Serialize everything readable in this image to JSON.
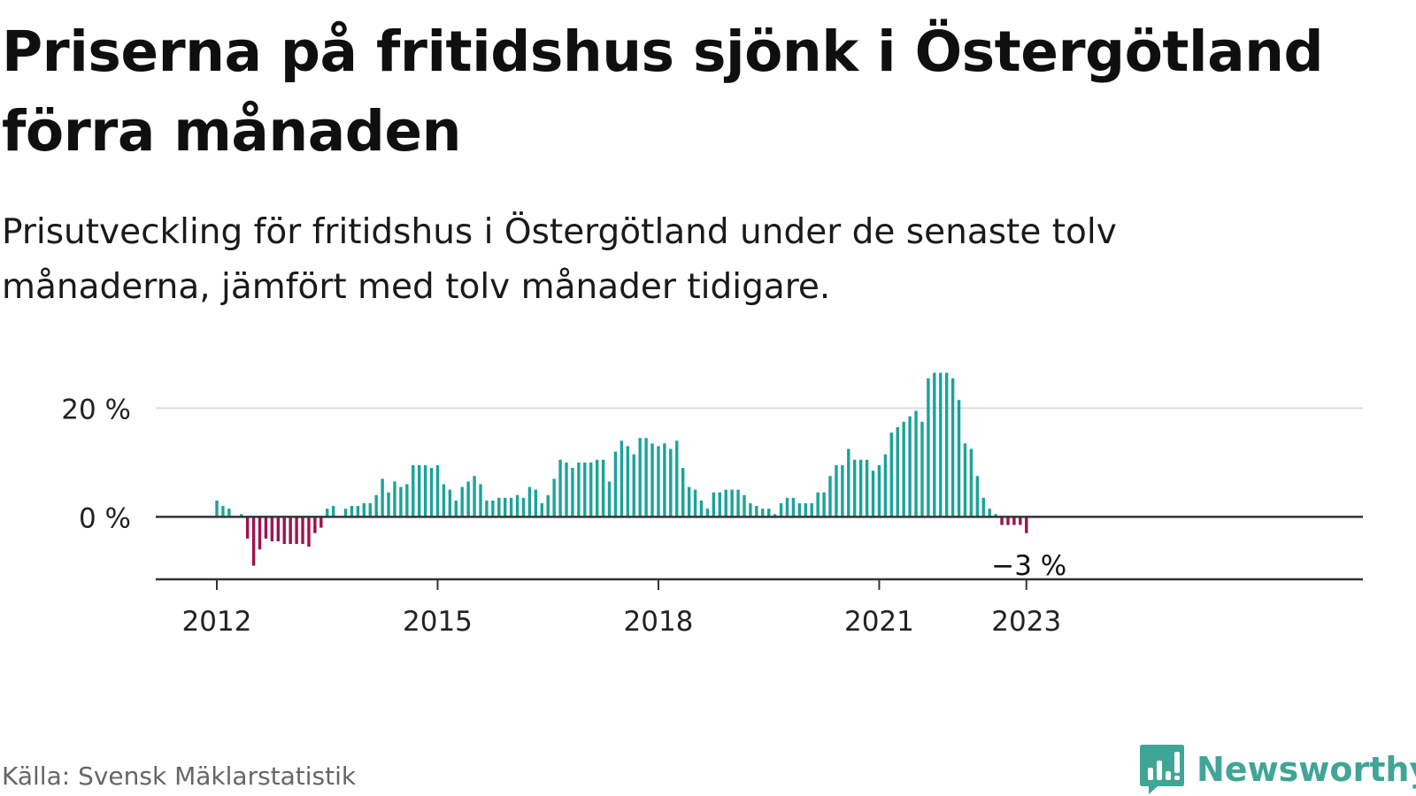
{
  "title": "Priserna på fritidshus sjönk i Östergötland förra månaden",
  "subtitle": "Prisutveckling för fritidshus i Östergötland under de senaste tolv månaderna, jämfört med tolv månader tidigare.",
  "source": "Källa: Svensk Mäklarstatistik",
  "brand": {
    "name": "Newsworthy",
    "icon": "bar-chart-speech-bubble-icon"
  },
  "colors": {
    "positive": "#1aa39a",
    "negative": "#a0124c",
    "brand": "#3fa597",
    "axis": "#333333",
    "grid": "#dddddd"
  },
  "chart_data": {
    "type": "bar",
    "title": "",
    "xlabel": "",
    "ylabel": "",
    "ylim": [
      -11.5,
      30
    ],
    "grid": "horizontal",
    "y_ticks": [
      {
        "value": 0,
        "label": "0 %"
      },
      {
        "value": 20,
        "label": "20 %"
      }
    ],
    "x_ticks": [
      {
        "value": "2012-01",
        "label": "2012"
      },
      {
        "value": "2015-01",
        "label": "2015"
      },
      {
        "value": "2018-01",
        "label": "2018"
      },
      {
        "value": "2021-01",
        "label": "2021"
      },
      {
        "value": "2023-01",
        "label": "2023"
      }
    ],
    "annotation": {
      "x": "2023-01",
      "value": -3,
      "label": "−3 %"
    },
    "series": [
      {
        "start": "2012-01",
        "values": [
          3,
          2,
          1.5,
          0,
          0.5,
          -4,
          -9,
          -6,
          -4,
          -4.5,
          -4.5,
          -5,
          -5,
          -5,
          -5,
          -5.5,
          -3,
          -2,
          1.5,
          2,
          0,
          1.5,
          2,
          2,
          2.5,
          2.5,
          4,
          7,
          4.5,
          6.5,
          5.5,
          6,
          9.5,
          9.5,
          9.5,
          9,
          9.5,
          6,
          5,
          3,
          5.5,
          6.5,
          7.5,
          6,
          3,
          3,
          3.5,
          3.5,
          3.5,
          4,
          3.5,
          5.5,
          5,
          2.5,
          4,
          7,
          10.5,
          10,
          9,
          10,
          10,
          10,
          10.5,
          10.5,
          6.5,
          12,
          14,
          13,
          11.5,
          14.5,
          14.5,
          13.5,
          13,
          13.5,
          12.5,
          14,
          9,
          5.5,
          5,
          3,
          1.5,
          4.5,
          4.5,
          5,
          5,
          5,
          4,
          2.5,
          2,
          1.5,
          1.5,
          0.5,
          2.5,
          3.5,
          3.5,
          2.5,
          2.5,
          2.5,
          4.5,
          4.5,
          7.5,
          9.5,
          9.5,
          12.5,
          10.5,
          10.5,
          10.5,
          8.5,
          9.5,
          11.5,
          15.5,
          16.5,
          17.5,
          18.5,
          19.5,
          17.5,
          25.5,
          26.5,
          26.5,
          26.5,
          25.5,
          21.5,
          13.5,
          12.5,
          7.5,
          3.5,
          1.5,
          0.5,
          -1.5,
          -1.5,
          -1.5,
          -1.5,
          -3
        ]
      }
    ]
  }
}
